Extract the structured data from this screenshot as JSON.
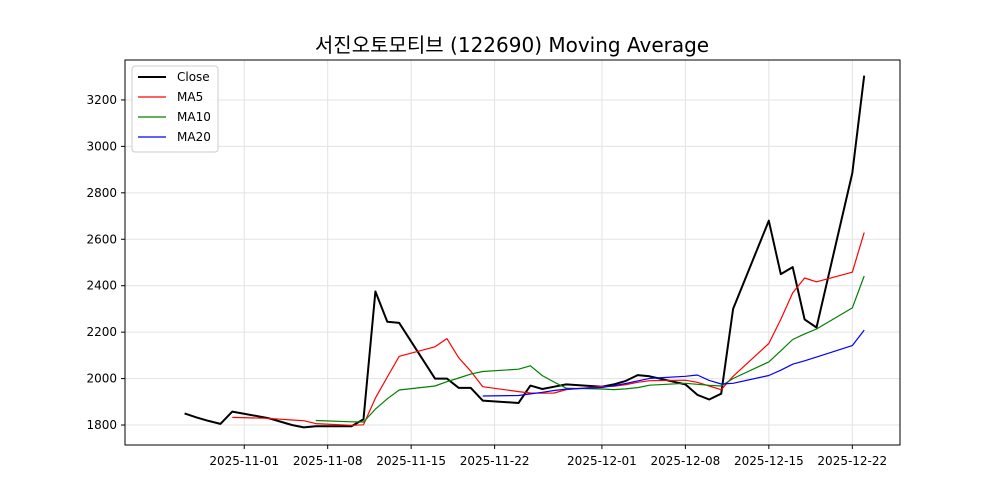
{
  "chart_data": {
    "type": "line",
    "title": "서진오토모티브 (122690) Moving Average",
    "xlabel": "",
    "ylabel": "",
    "ylim": [
      1714,
      3372
    ],
    "xlim": [
      "2025-10-22",
      "2025-12-26"
    ],
    "grid": true,
    "legend_position": "top-left",
    "yticks": [
      1800,
      2000,
      2200,
      2400,
      2600,
      2800,
      3000,
      3200
    ],
    "xticks": [
      "2025-11-01",
      "2025-11-08",
      "2025-11-15",
      "2025-11-22",
      "2025-12-01",
      "2025-12-08",
      "2025-12-15",
      "2025-12-22"
    ],
    "dates": [
      "2025-10-27",
      "2025-10-28",
      "2025-10-29",
      "2025-10-30",
      "2025-10-31",
      "2025-11-03",
      "2025-11-04",
      "2025-11-05",
      "2025-11-06",
      "2025-11-07",
      "2025-11-10",
      "2025-11-11",
      "2025-11-12",
      "2025-11-13",
      "2025-11-14",
      "2025-11-17",
      "2025-11-18",
      "2025-11-19",
      "2025-11-20",
      "2025-11-21",
      "2025-11-24",
      "2025-11-25",
      "2025-11-26",
      "2025-11-27",
      "2025-11-28",
      "2025-12-01",
      "2025-12-02",
      "2025-12-03",
      "2025-12-04",
      "2025-12-05",
      "2025-12-08",
      "2025-12-09",
      "2025-12-10",
      "2025-12-11",
      "2025-12-12",
      "2025-12-15",
      "2025-12-16",
      "2025-12-17",
      "2025-12-18",
      "2025-12-19",
      "2025-12-22",
      "2025-12-23"
    ],
    "series": [
      {
        "name": "Close",
        "color": "#000000",
        "width": 2,
        "values": [
          1850,
          1833,
          1818,
          1805,
          1858,
          1830,
          1815,
          1800,
          1790,
          1795,
          1795,
          1825,
          2375,
          2245,
          2240,
          2000,
          2000,
          1960,
          1960,
          1905,
          1895,
          1970,
          1955,
          1965,
          1975,
          1965,
          1975,
          1990,
          2015,
          2010,
          1975,
          1930,
          1910,
          1935,
          2300,
          2680,
          2450,
          2480,
          2255,
          2220,
          2885,
          3305
        ]
      },
      {
        "name": "MA5",
        "color": "#ff0000",
        "width": 1.2,
        "window": 5
      },
      {
        "name": "MA10",
        "color": "#008000",
        "width": 1.2,
        "window": 10
      },
      {
        "name": "MA20",
        "color": "#0000ff",
        "width": 1.2,
        "window": 20
      }
    ]
  }
}
